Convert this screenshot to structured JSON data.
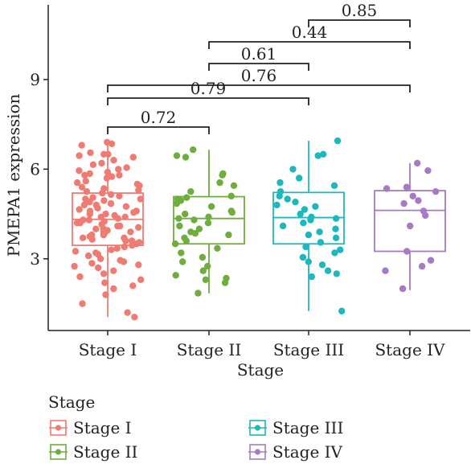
{
  "chart_data": {
    "type": "boxplot",
    "xlabel": "Stage",
    "ylabel": "PMEPA1 expression",
    "ylim": [
      0.6,
      11.5
    ],
    "yticks": [
      3,
      6,
      9
    ],
    "grid": false,
    "legend_title": "Stage",
    "legend_position": "bottom",
    "categories": [
      "Stage I",
      "Stage II",
      "Stage III",
      "Stage IV"
    ],
    "colors": [
      "#F07B72",
      "#6FAD3E",
      "#1DB8BE",
      "#A879C4"
    ],
    "boxes": [
      {
        "name": "Stage I",
        "q1": 3.45,
        "median": 4.32,
        "q3": 5.2,
        "whisker_low": 1.05,
        "whisker_high": 6.9
      },
      {
        "name": "Stage II",
        "q1": 3.5,
        "median": 4.35,
        "q3": 5.08,
        "whisker_low": 1.85,
        "whisker_high": 6.65
      },
      {
        "name": "Stage III",
        "q1": 3.5,
        "median": 4.38,
        "q3": 5.22,
        "whisker_low": 1.25,
        "whisker_high": 6.95
      },
      {
        "name": "Stage IV",
        "q1": 3.25,
        "median": 4.62,
        "q3": 5.28,
        "whisker_low": 1.95,
        "whisker_high": 6.2
      }
    ],
    "points": [
      [
        6.9,
        6.85,
        6.8,
        6.55,
        6.5,
        6.5,
        6.45,
        6.4,
        6.3,
        6.2,
        6.15,
        6.05,
        6.0,
        5.95,
        5.9,
        5.85,
        5.8,
        5.8,
        5.75,
        5.7,
        5.6,
        5.55,
        5.5,
        5.45,
        5.4,
        5.35,
        5.3,
        5.25,
        5.2,
        5.15,
        5.1,
        5.05,
        5.0,
        5.0,
        4.95,
        4.9,
        4.85,
        4.8,
        4.8,
        4.75,
        4.7,
        4.7,
        4.65,
        4.6,
        4.6,
        4.55,
        4.5,
        4.5,
        4.45,
        4.4,
        4.4,
        4.35,
        4.3,
        4.3,
        4.25,
        4.2,
        4.2,
        4.15,
        4.1,
        4.1,
        4.05,
        4.0,
        4.0,
        3.95,
        3.9,
        3.9,
        3.85,
        3.8,
        3.8,
        3.75,
        3.7,
        3.7,
        3.65,
        3.6,
        3.6,
        3.55,
        3.5,
        3.45,
        3.4,
        3.35,
        3.3,
        3.25,
        3.2,
        3.15,
        3.1,
        3.0,
        2.95,
        2.9,
        2.85,
        2.8,
        2.75,
        2.7,
        2.6,
        2.5,
        2.4,
        2.3,
        2.2,
        2.1,
        2.0,
        1.8,
        1.5,
        1.2,
        1.05
      ],
      [
        6.65,
        6.45,
        6.4,
        5.85,
        5.8,
        5.55,
        5.45,
        5.25,
        5.1,
        5.05,
        5.0,
        4.95,
        4.85,
        4.75,
        4.6,
        4.55,
        4.5,
        4.4,
        4.35,
        4.3,
        4.2,
        4.1,
        4.0,
        3.9,
        3.85,
        3.8,
        3.7,
        3.6,
        3.5,
        3.35,
        3.2,
        3.05,
        2.9,
        2.75,
        2.6,
        2.45,
        2.35,
        2.3,
        2.2,
        1.85
      ],
      [
        6.95,
        6.5,
        6.45,
        6.0,
        5.7,
        5.55,
        5.45,
        5.25,
        5.1,
        5.0,
        4.9,
        4.8,
        4.75,
        4.65,
        4.5,
        4.4,
        4.35,
        4.3,
        4.2,
        4.1,
        4.0,
        3.9,
        3.8,
        3.7,
        3.55,
        3.4,
        3.3,
        3.2,
        3.05,
        2.9,
        2.8,
        2.6,
        2.5,
        2.4,
        1.25
      ],
      [
        6.2,
        5.95,
        5.4,
        5.35,
        5.25,
        5.1,
        4.95,
        4.85,
        4.6,
        4.45,
        4.1,
        3.25,
        2.95,
        2.75,
        2.6,
        2.0
      ]
    ],
    "comparisons": [
      {
        "groups": [
          0,
          1
        ],
        "p": "0.72"
      },
      {
        "groups": [
          0,
          2
        ],
        "p": "0.79"
      },
      {
        "groups": [
          0,
          3
        ],
        "p": "0.76"
      },
      {
        "groups": [
          1,
          2
        ],
        "p": "0.61"
      },
      {
        "groups": [
          1,
          3
        ],
        "p": "0.44"
      },
      {
        "groups": [
          2,
          3
        ],
        "p": "0.85"
      }
    ]
  }
}
